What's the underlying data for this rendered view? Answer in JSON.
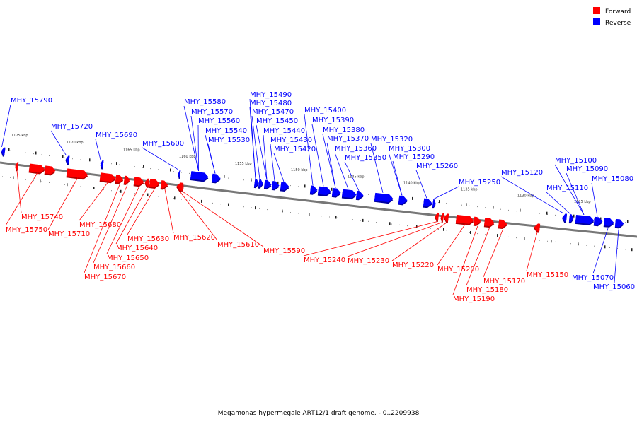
{
  "legend": {
    "forward_label": "Forward",
    "reverse_label": "Reverse",
    "forward_color": "#ff0000",
    "reverse_color": "#0000ff"
  },
  "caption": "Megamonas hypermegale ART12/1 draft genome. - 0..2209938",
  "ticks": [
    "1175 kbp",
    "1170 kbp",
    "1165 kbp",
    "1160 kbp",
    "1155 kbp",
    "1150 kbp",
    "1145 kbp",
    "1140 kbp",
    "1135 kbp",
    "1130 kbp",
    "1125 kbp"
  ],
  "forward_genes": [
    "MHY_15740",
    "MHY_15750",
    "MHY_15710",
    "MHY_15680",
    "MHY_15670",
    "MHY_15660",
    "MHY_15650",
    "MHY_15640",
    "MHY_15630",
    "MHY_15620",
    "MHY_15610",
    "MHY_15590",
    "MHY_15240",
    "MHY_15230",
    "MHY_15220",
    "MHY_15200",
    "MHY_15190",
    "MHY_15180",
    "MHY_15170",
    "MHY_15150"
  ],
  "reverse_genes": [
    "MHY_15790",
    "MHY_15720",
    "MHY_15690",
    "MHY_15600",
    "MHY_15580",
    "MHY_15570",
    "MHY_15560",
    "MHY_15540",
    "MHY_15530",
    "MHY_15490",
    "MHY_15480",
    "MHY_15470",
    "MHY_15450",
    "MHY_15440",
    "MHY_15430",
    "MHY_15420",
    "MHY_15400",
    "MHY_15390",
    "MHY_15380",
    "MHY_15370",
    "MHY_15360",
    "MHY_15350",
    "MHY_15320",
    "MHY_15300",
    "MHY_15290",
    "MHY_15260",
    "MHY_15250",
    "MHY_15120",
    "MHY_15110",
    "MHY_15100",
    "MHY_15090",
    "MHY_15080",
    "MHY_15070",
    "MHY_15060"
  ]
}
